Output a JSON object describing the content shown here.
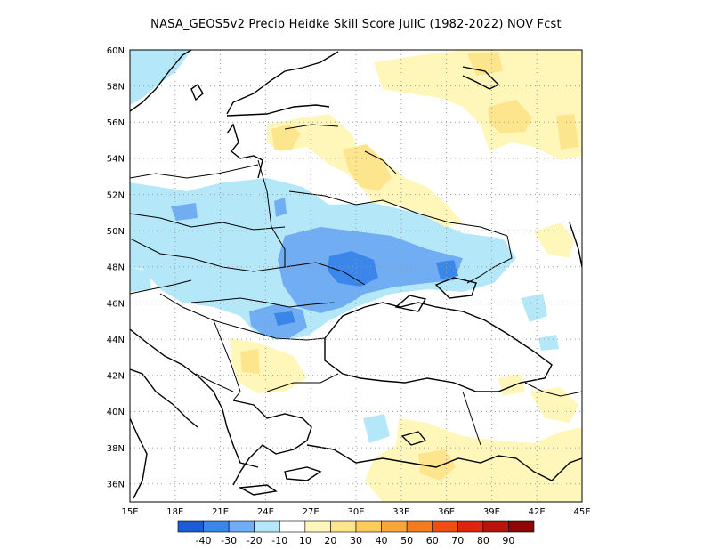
{
  "title": "NASA_GEOS5v2 Precip Heidke Skill Score JulIC (1982-2022) NOV Fcst",
  "lon_ticks": [
    "15E",
    "18E",
    "21E",
    "24E",
    "27E",
    "30E",
    "33E",
    "36E",
    "39E",
    "42E",
    "45E"
  ],
  "lat_ticks": [
    "36N",
    "38N",
    "40N",
    "42N",
    "44N",
    "46N",
    "48N",
    "50N",
    "52N",
    "54N",
    "56N",
    "58N",
    "60N"
  ],
  "extent": {
    "lon": [
      15,
      45
    ],
    "lat": [
      35,
      60
    ]
  },
  "colorbar": {
    "colors": [
      "#1f5bd6",
      "#3b86ea",
      "#70adf2",
      "#b4e8f8",
      "#ffffff",
      "#fff7ba",
      "#fde58e",
      "#fccb5a",
      "#f9a53a",
      "#f57b1f",
      "#ef4d13",
      "#de2410",
      "#b8140c",
      "#900606"
    ],
    "labels": [
      "-40",
      "-30",
      "-20",
      "-10",
      "10",
      "20",
      "30",
      "40",
      "50",
      "60",
      "70",
      "80",
      "90"
    ]
  }
}
